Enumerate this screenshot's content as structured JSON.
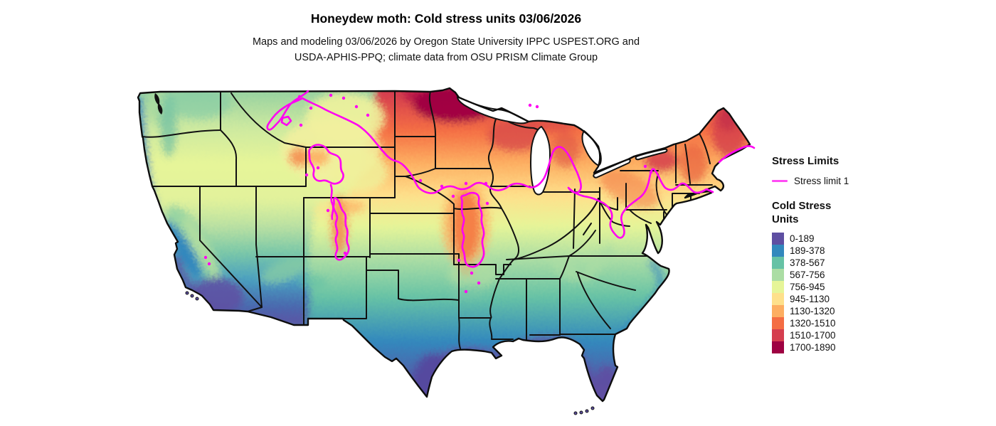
{
  "header": {
    "title": "Honeydew moth: Cold stress units 03/06/2026",
    "subtitle_line1": "Maps and modeling 03/06/2026 by Oregon State University IPPC USPEST.ORG and",
    "subtitle_line2": "USDA-APHIS-PPQ; climate data from OSU PRISM Climate Group"
  },
  "legend": {
    "stress_limits_heading": "Stress Limits",
    "stress_limit_items": [
      {
        "label": "Stress limit 1",
        "color": "#ff4cf4"
      }
    ],
    "units_heading": "Cold Stress Units",
    "classes": [
      {
        "range": "0-189",
        "color": "#5e4fa2"
      },
      {
        "range": "189-378",
        "color": "#3288bd"
      },
      {
        "range": "378-567",
        "color": "#66c2a5"
      },
      {
        "range": "567-756",
        "color": "#abdda4"
      },
      {
        "range": "756-945",
        "color": "#e6f598"
      },
      {
        "range": "945-1130",
        "color": "#fee08b"
      },
      {
        "range": "1130-1320",
        "color": "#fdae61"
      },
      {
        "range": "1320-1510",
        "color": "#f46d43"
      },
      {
        "range": "1510-1700",
        "color": "#d53e4f"
      },
      {
        "range": "1700-1890",
        "color": "#9e0142"
      }
    ]
  },
  "map": {
    "contour_color": "#ff00f2",
    "contour_name": "Stress limit 1",
    "value_name": "Cold Stress Units"
  }
}
